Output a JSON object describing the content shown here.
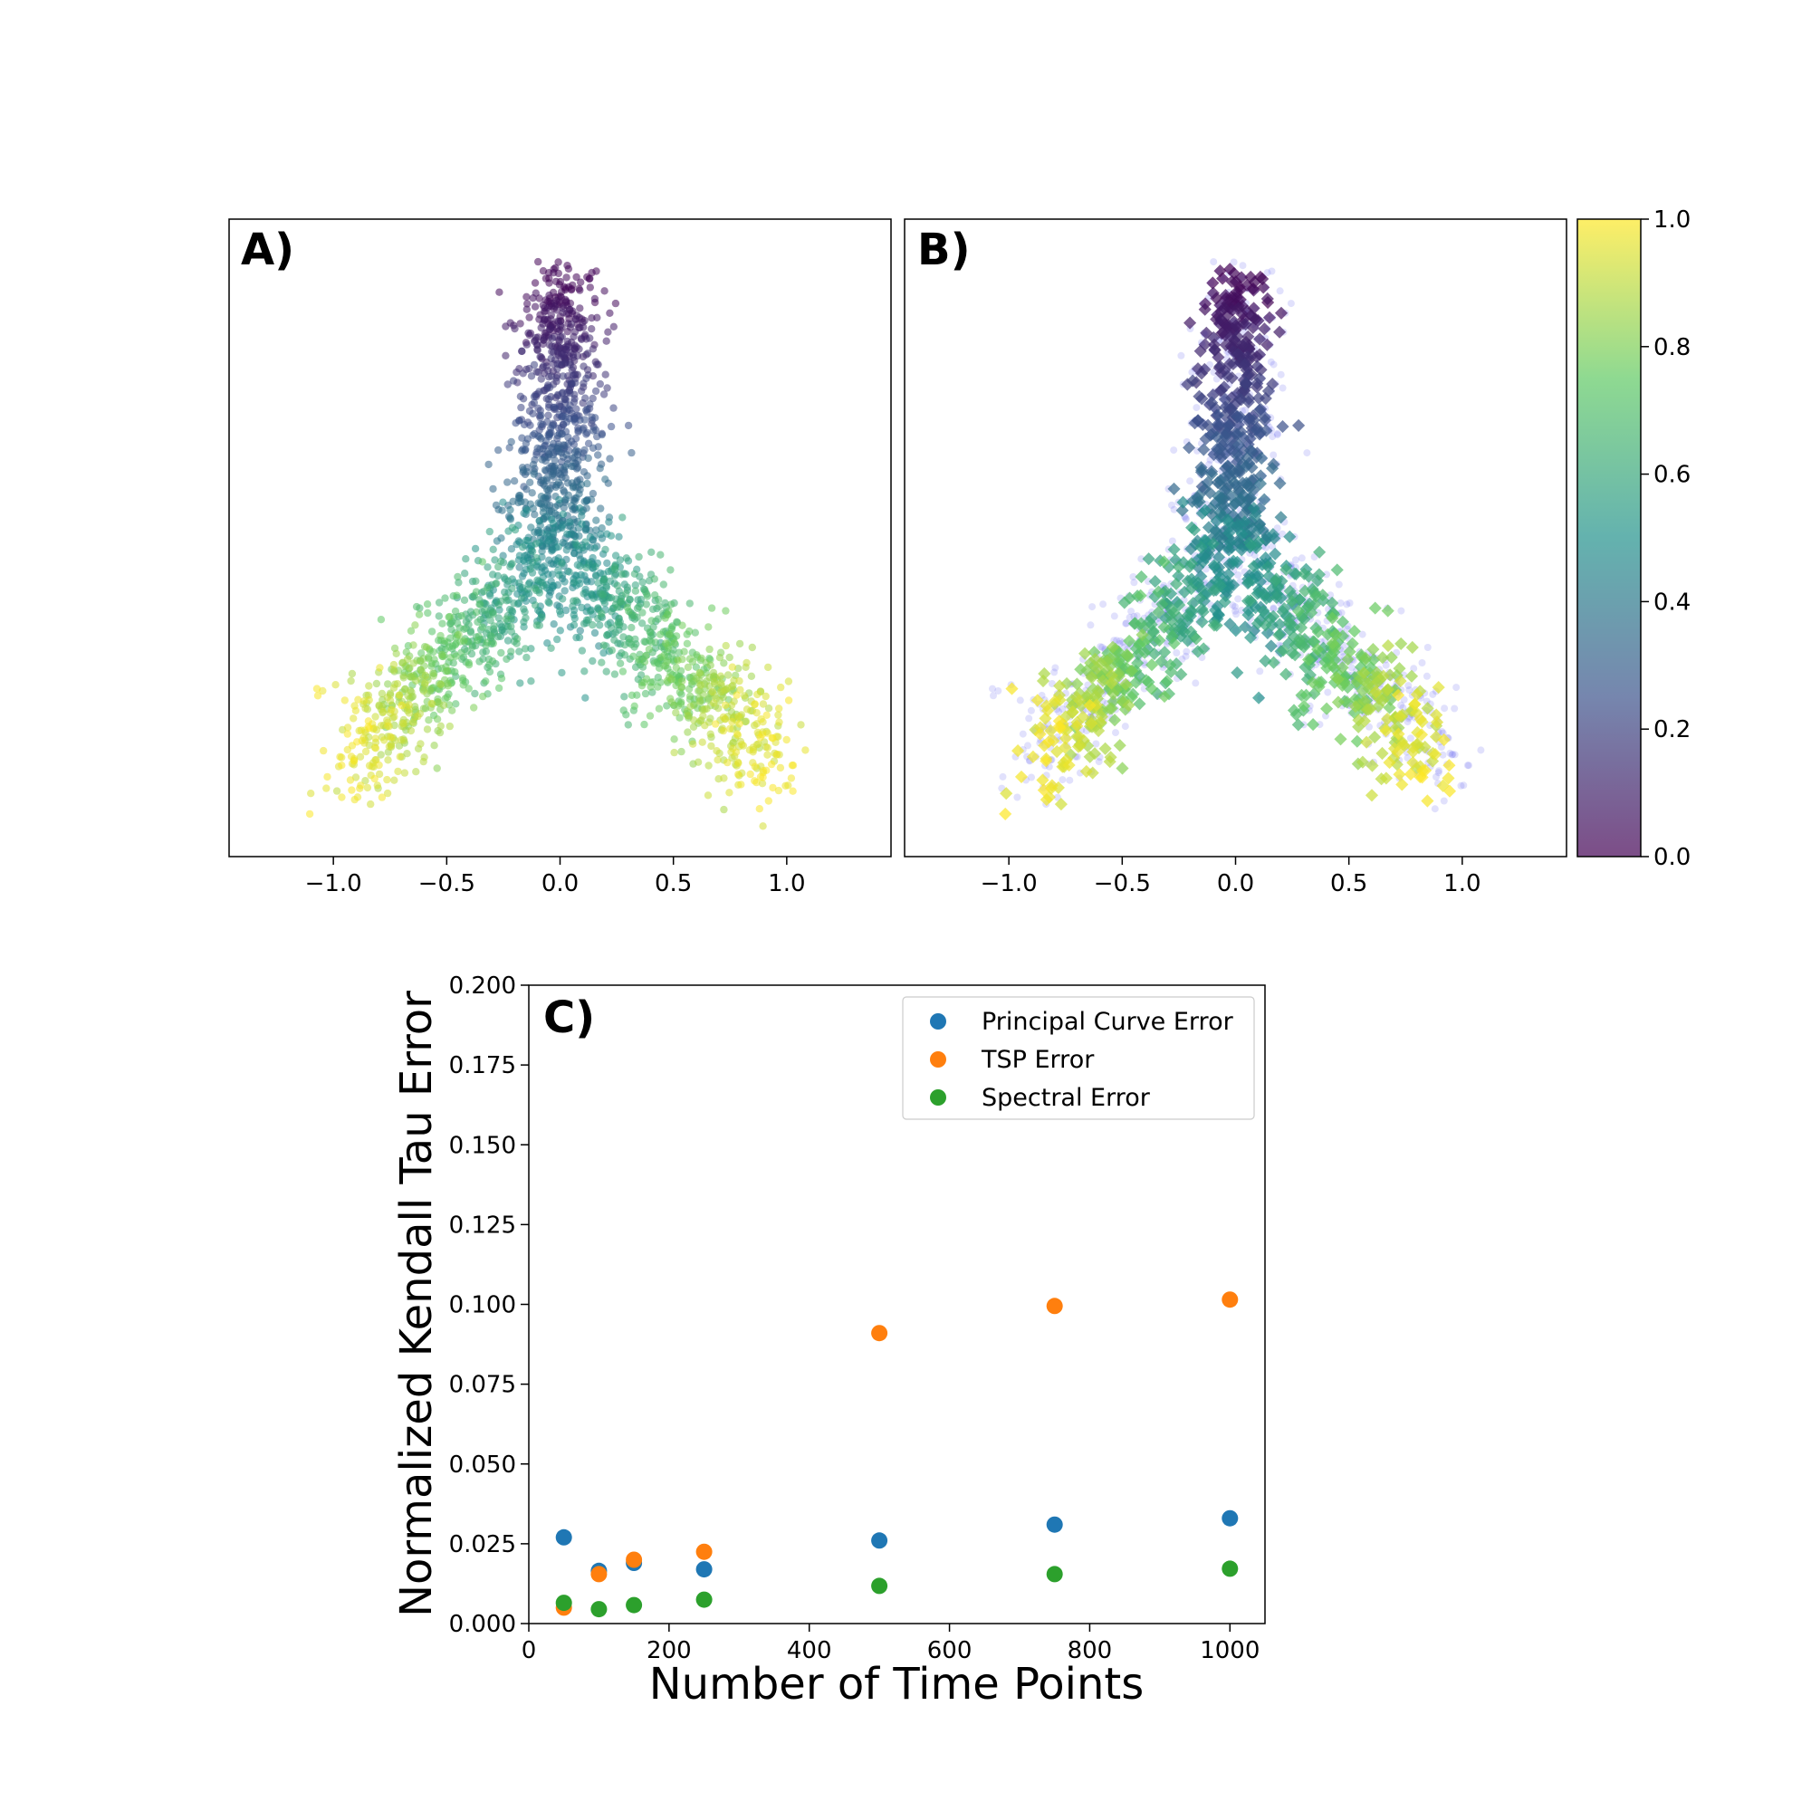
{
  "chart_data": [
    {
      "panel": "A)",
      "type": "scatter",
      "description_visible": false,
      "x_ticks": [
        "−1.0",
        "−0.5",
        "0.0",
        "0.5",
        "1.0"
      ],
      "x_tick_values": [
        -1.0,
        -0.5,
        0.0,
        0.5,
        1.0
      ],
      "xlim": [
        -1.46,
        1.46
      ],
      "ylim": [
        -0.22,
        1.1
      ],
      "colormap": "viridis",
      "shape": "Y-shaped branching point cloud colored by pseudotime (0 at top stem, 1 at branch tips)"
    },
    {
      "panel": "B)",
      "type": "scatter",
      "x_ticks": [
        "−1.0",
        "−0.5",
        "0.0",
        "0.5",
        "1.0"
      ],
      "x_tick_values": [
        -1.0,
        -0.5,
        0.0,
        0.5,
        1.0
      ],
      "xlim": [
        -1.46,
        1.46
      ],
      "ylim": [
        -0.22,
        1.1
      ],
      "colormap": "viridis",
      "background_points_color": "#5a5af0",
      "colorbar": {
        "ticks": [
          "0.0",
          "0.2",
          "0.4",
          "0.6",
          "0.8",
          "1.0"
        ],
        "tick_values": [
          0.0,
          0.2,
          0.4,
          0.6,
          0.8,
          1.0
        ],
        "range": [
          0.0,
          1.0
        ]
      }
    },
    {
      "panel": "C)",
      "type": "scatter",
      "xlabel": "Number of Time Points",
      "ylabel": "Normalized Kendall Tau Error",
      "xlim": [
        0,
        1050
      ],
      "ylim": [
        0.0,
        0.2
      ],
      "x_ticks": [
        "0",
        "200",
        "400",
        "600",
        "800",
        "1000"
      ],
      "x_tick_values": [
        0,
        200,
        400,
        600,
        800,
        1000
      ],
      "y_ticks": [
        "0.000",
        "0.025",
        "0.050",
        "0.075",
        "0.100",
        "0.125",
        "0.150",
        "0.175",
        "0.200"
      ],
      "y_tick_values": [
        0.0,
        0.025,
        0.05,
        0.075,
        0.1,
        0.125,
        0.15,
        0.175,
        0.2
      ],
      "x": [
        50,
        100,
        150,
        250,
        500,
        750,
        1000
      ],
      "series": [
        {
          "name": "Principal Curve Error",
          "color": "#1f77b4",
          "values": [
            0.027,
            0.0165,
            0.019,
            0.017,
            0.026,
            0.031,
            0.033
          ]
        },
        {
          "name": "TSP Error",
          "color": "#ff7f0e",
          "values": [
            0.005,
            0.0155,
            0.02,
            0.0225,
            0.091,
            0.0995,
            0.1015
          ]
        },
        {
          "name": "Spectral Error",
          "color": "#2ca02c",
          "values": [
            0.0065,
            0.0045,
            0.0058,
            0.0075,
            0.0118,
            0.0155,
            0.0172
          ]
        }
      ],
      "legend": "top-right"
    }
  ]
}
